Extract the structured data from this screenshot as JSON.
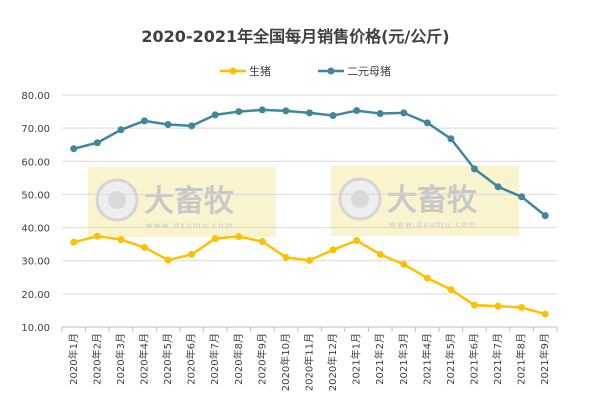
{
  "chart_data": {
    "type": "line",
    "title": "2020-2021年全国每月销售价格(元/公斤)",
    "categories": [
      "2020年1月",
      "2020年2月",
      "2020年3月",
      "2020年4月",
      "2020年5月",
      "2020年6月",
      "2020年7月",
      "2020年8月",
      "2020年9月",
      "2020年10月",
      "2020年11月",
      "2020年12月",
      "2021年1月",
      "2021年2月",
      "2021年3月",
      "2021年4月",
      "2021年5月",
      "2021年6月",
      "2021年7月",
      "2021年8月",
      "2021年9月"
    ],
    "series": [
      {
        "name": "生猪",
        "color": "#ffc000",
        "values": [
          35.6,
          37.4,
          36.4,
          34.0,
          30.2,
          31.9,
          36.7,
          37.3,
          35.8,
          31.0,
          30.1,
          33.3,
          36.1,
          31.9,
          28.9,
          24.8,
          21.3,
          16.6,
          16.3,
          15.9,
          13.9
        ]
      },
      {
        "name": "二元母猪",
        "color": "#41859f",
        "values": [
          63.8,
          65.6,
          69.5,
          72.2,
          71.1,
          70.7,
          74.0,
          75.0,
          75.5,
          75.2,
          74.6,
          73.8,
          75.3,
          74.4,
          74.6,
          71.6,
          66.8,
          57.7,
          52.3,
          49.3,
          43.6
        ]
      }
    ],
    "ylim": [
      10,
      80
    ],
    "yticks": [
      "10.00",
      "20.00",
      "30.00",
      "40.00",
      "50.00",
      "60.00",
      "70.00",
      "80.00"
    ],
    "grid": true,
    "legend": "top-center",
    "xlabel": "",
    "ylabel": ""
  },
  "watermark": {
    "text": "大畜牧",
    "url": "www.dxumu.com"
  }
}
